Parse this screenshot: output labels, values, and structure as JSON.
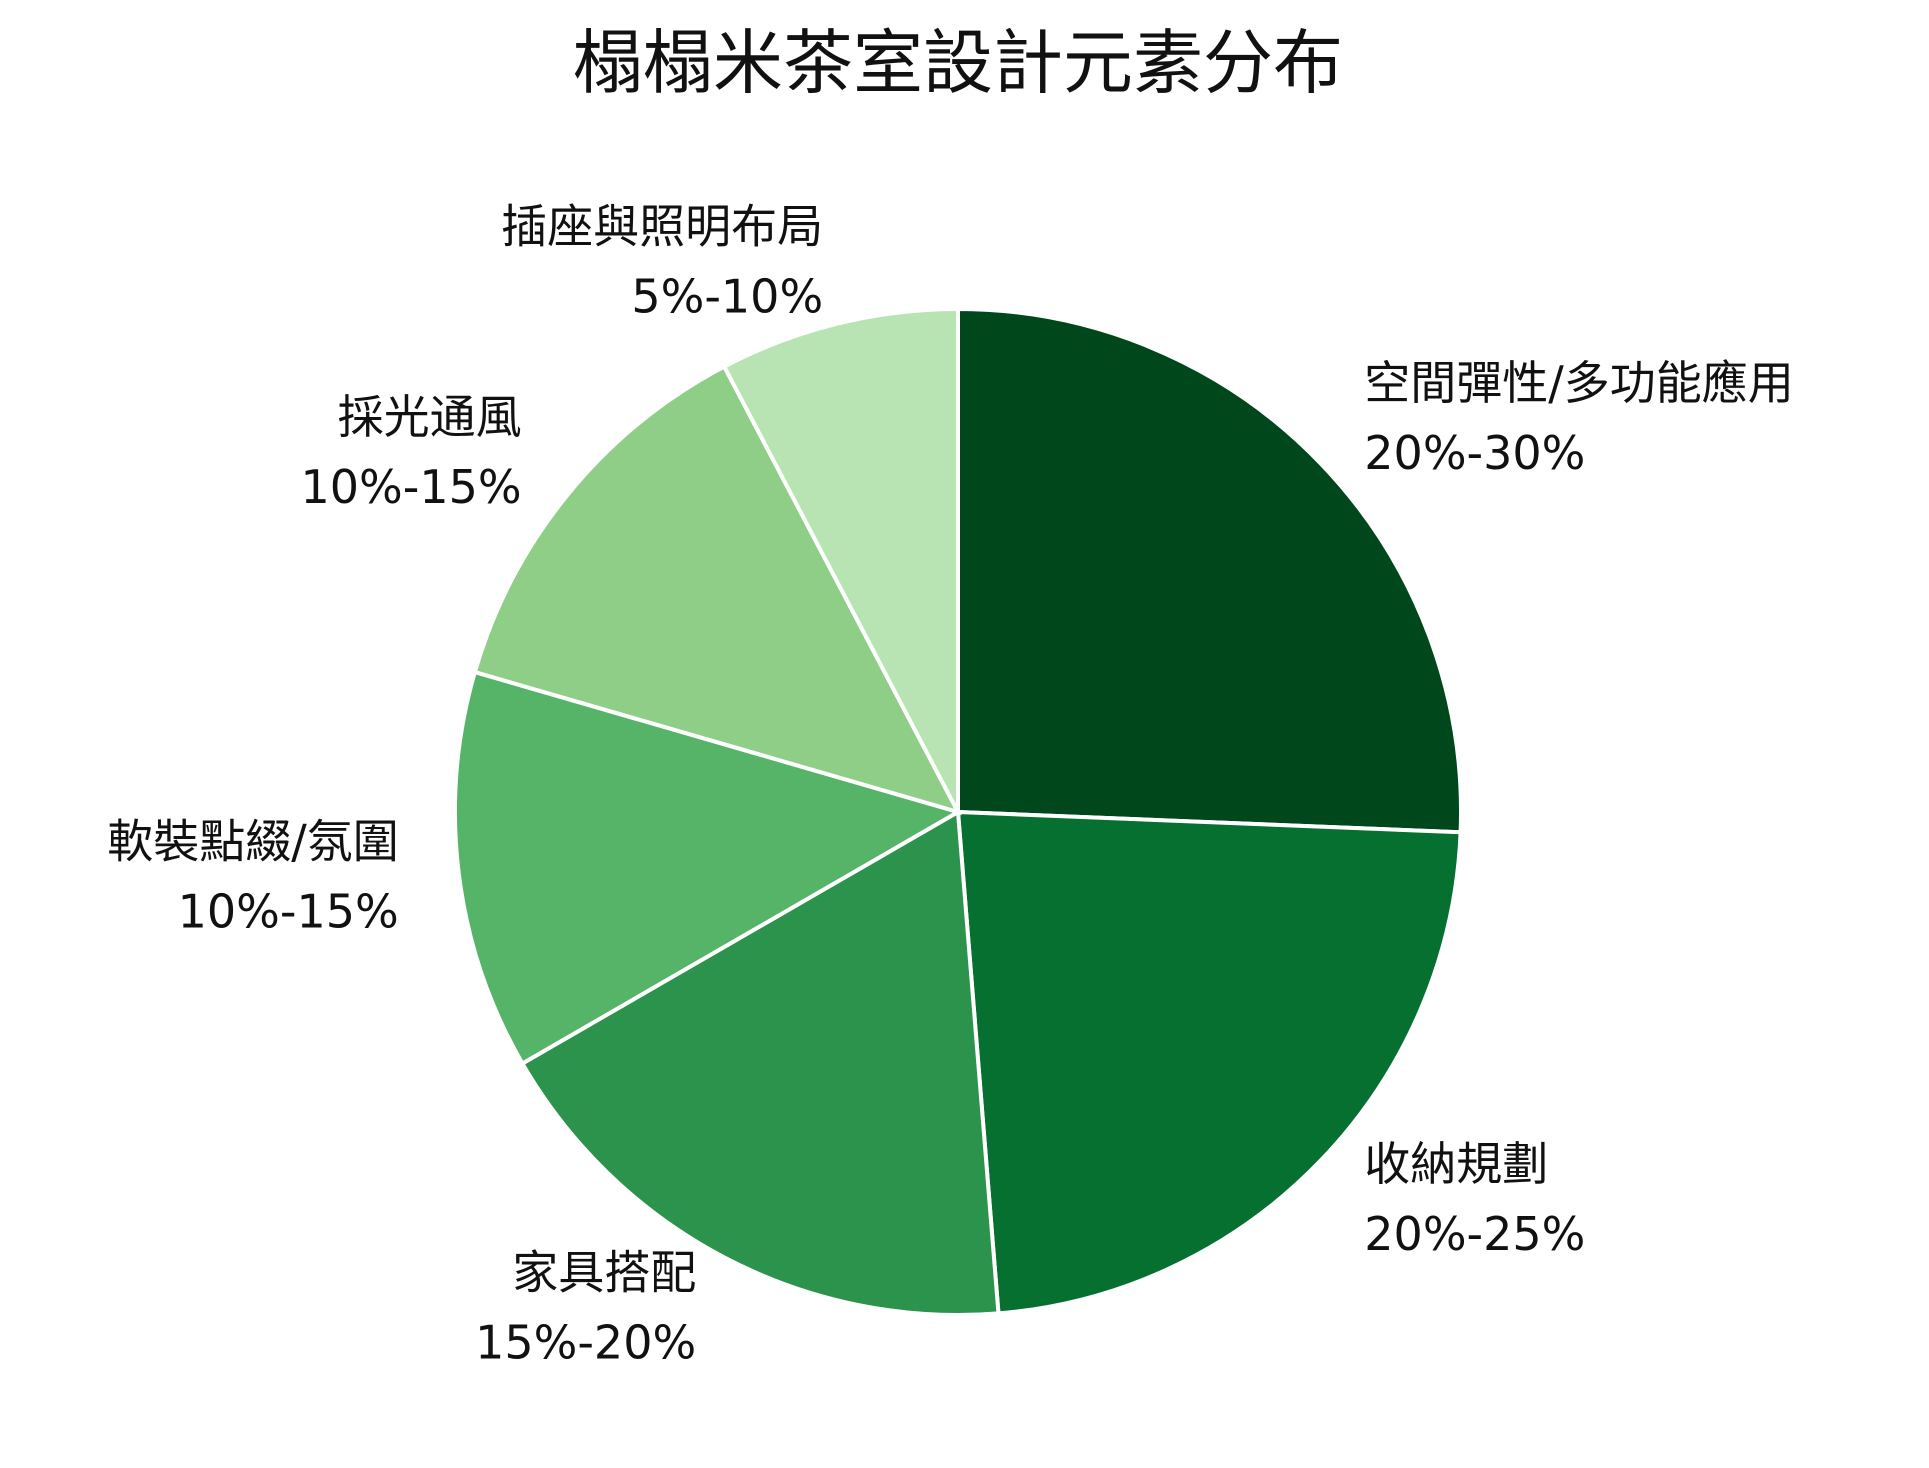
{
  "chart_data": {
    "type": "pie",
    "title": "榻榻米茶室設計元素分布",
    "categories": [
      "空間彈性/多功能應用",
      "收納規劃",
      "家具搭配",
      "軟裝點綴/氛圍",
      "採光通風",
      "插座與照明布局"
    ],
    "values": [
      25,
      22.5,
      17.5,
      12.5,
      12.5,
      7.5
    ],
    "value_labels": [
      "20%-30%",
      "20%-25%",
      "15%-20%",
      "10%-15%",
      "10%-15%",
      "5%-10%"
    ],
    "colors": [
      "#00471b",
      "#067030",
      "#2c934c",
      "#55b467",
      "#8ece87",
      "#b8e3b2"
    ]
  }
}
